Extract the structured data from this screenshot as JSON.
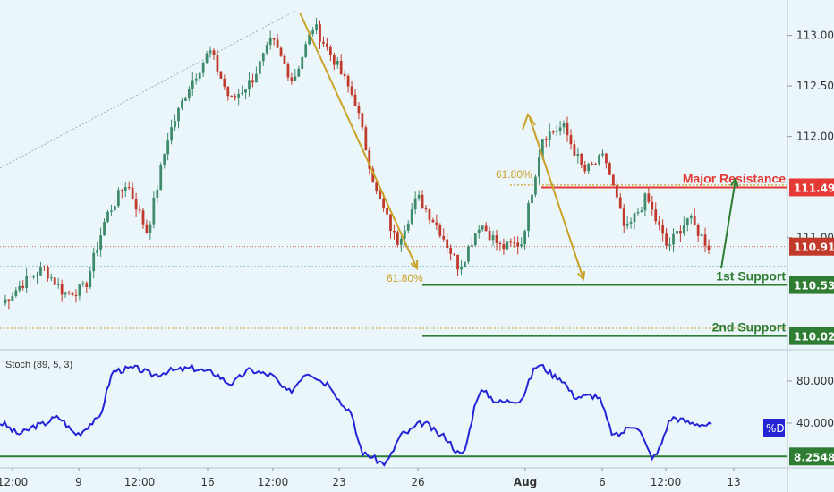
{
  "chart_data": {
    "type": "candlestick",
    "colors": {
      "background": "#ebf6fb",
      "up": "#3d8b6a",
      "down": "#c0392b",
      "resistance": "#e53935",
      "support": "#2e7d32",
      "fib": "#c9a227",
      "stoch": "#2424d6",
      "last_price_line": "#c0392b",
      "axis_text": "#333333"
    },
    "price_axis": {
      "ticks": [
        "113.000",
        "112.500",
        "112.000",
        "111.000"
      ],
      "tick_values": [
        113.0,
        112.5,
        112.0,
        111.0
      ],
      "range": [
        109.9,
        113.35
      ]
    },
    "time_axis": {
      "labels": [
        "12:00",
        "9",
        "12:00",
        "16",
        "12:00",
        "23",
        "26",
        "Aug",
        "6",
        "12:00",
        "13"
      ],
      "bold_index": 7
    },
    "levels": [
      {
        "name": "Major Resistance",
        "value": 111.497,
        "label": "111.497",
        "color": "#e53935"
      },
      {
        "name": "1st Support",
        "value": 110.532,
        "label": "110.532",
        "color": "#2e7d32"
      },
      {
        "name": "2nd Support",
        "value": 110.027,
        "label": "110.027",
        "color": "#2e7d32"
      }
    ],
    "last_price": {
      "value": 110.911,
      "label": "110.911"
    },
    "fib_labels": [
      "61.80%",
      "61.80%"
    ],
    "price_path": [
      110.35,
      110.55,
      110.7,
      110.45,
      110.5,
      111.2,
      111.55,
      111.05,
      112.0,
      112.5,
      112.85,
      112.35,
      112.55,
      112.95,
      112.55,
      113.1,
      112.75,
      112.35,
      111.45,
      110.95,
      111.4,
      111.1,
      110.7,
      111.15,
      110.9,
      110.95,
      112.0,
      112.1,
      111.65,
      111.8,
      111.05,
      111.4,
      110.9,
      111.2,
      110.91
    ],
    "stochastic": {
      "label": "Stoch (89, 5, 3)",
      "ticks": [
        "80.0000",
        "40.0000"
      ],
      "tick_values": [
        80,
        40
      ],
      "range": [
        0,
        108
      ],
      "current_label": "%D",
      "level": {
        "value": 8.2548,
        "label": "8.2548"
      },
      "values": [
        40,
        30,
        38,
        45,
        30,
        42,
        90,
        92,
        86,
        90,
        92,
        88,
        78,
        90,
        86,
        70,
        88,
        78,
        55,
        10,
        2,
        30,
        40,
        28,
        10,
        70,
        60,
        62,
        95,
        84,
        65,
        66,
        28,
        38,
        8,
        45,
        40,
        38
      ]
    }
  }
}
